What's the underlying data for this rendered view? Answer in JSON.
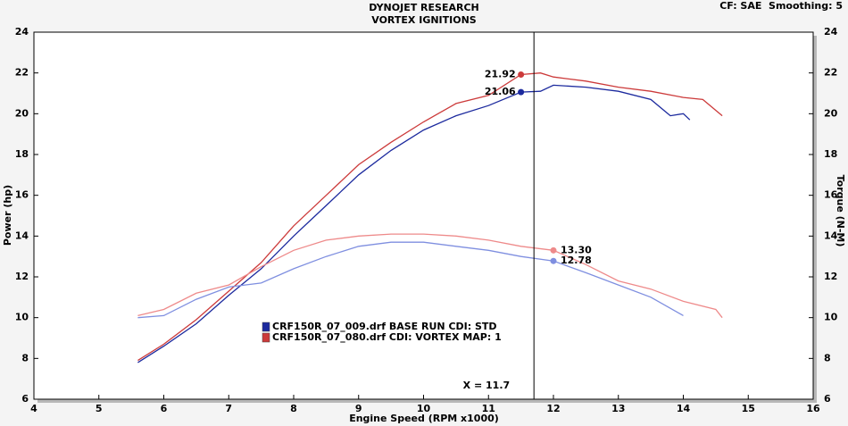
{
  "chart_data": {
    "type": "line",
    "title": "DYNOJET RESEARCH",
    "subtitle": "VORTEX IGNITIONS",
    "settings_label": "CF: SAE  Smoothing: 5",
    "x_label": "Engine Speed (RPM x1000)",
    "y_label": "Power (hp)",
    "y2_label": "Torque (N-M)",
    "xlim": [
      4,
      16
    ],
    "xticks": [
      4,
      5,
      6,
      7,
      8,
      9,
      10,
      11,
      12,
      13,
      14,
      15,
      16
    ],
    "ylim": [
      6,
      24
    ],
    "yticks": [
      6,
      8,
      10,
      12,
      14,
      16,
      18,
      20,
      22,
      24
    ],
    "y2lim": [
      6,
      24
    ],
    "y2ticks": [
      6,
      8,
      10,
      12,
      14,
      16,
      18,
      20,
      22,
      24
    ],
    "grid": false,
    "series": [
      {
        "name": "CRF150R_07_009.drf BASE RUN CDI: STD",
        "color": "#1c2a9e",
        "x": [
          5.6,
          6,
          6.5,
          7,
          7.5,
          8,
          8.5,
          9,
          9.5,
          10,
          10.5,
          11,
          11.5,
          11.8,
          12,
          12.5,
          13,
          13.5,
          13.8,
          14,
          14.1
        ],
        "values": [
          7.8,
          8.6,
          9.7,
          11.1,
          12.4,
          14.0,
          15.5,
          17.0,
          18.2,
          19.2,
          19.9,
          20.4,
          21.06,
          21.1,
          21.4,
          21.3,
          21.1,
          20.7,
          19.9,
          20.0,
          19.7
        ]
      },
      {
        "name": "CRF150R_07_080.drf CDI: VORTEX MAP: 1",
        "color": "#cc3a3a",
        "x": [
          5.6,
          6,
          6.5,
          7,
          7.5,
          8,
          8.5,
          9,
          9.5,
          10,
          10.5,
          11,
          11.5,
          11.8,
          12,
          12.5,
          13,
          13.5,
          14,
          14.3,
          14.6
        ],
        "values": [
          7.9,
          8.7,
          9.9,
          11.3,
          12.7,
          14.5,
          16.0,
          17.5,
          18.6,
          19.6,
          20.5,
          20.9,
          21.92,
          22.0,
          21.8,
          21.6,
          21.3,
          21.1,
          20.8,
          20.7,
          19.9
        ]
      },
      {
        "color": "#7f8fe0",
        "axis": "y2",
        "x": [
          5.6,
          6,
          6.5,
          7,
          7.5,
          8,
          8.5,
          9,
          9.5,
          10,
          10.5,
          11,
          11.5,
          12,
          12.5,
          13,
          13.5,
          14
        ],
        "values": [
          10.0,
          10.1,
          10.9,
          11.5,
          11.7,
          12.4,
          13.0,
          13.5,
          13.7,
          13.7,
          13.5,
          13.3,
          13.0,
          12.78,
          12.2,
          11.6,
          11.0,
          10.1
        ]
      },
      {
        "color": "#ee8a8a",
        "axis": "y2",
        "x": [
          5.6,
          6,
          6.5,
          7,
          7.5,
          8,
          8.5,
          9,
          9.5,
          10,
          10.5,
          11,
          11.5,
          12,
          12.5,
          13,
          13.5,
          14,
          14.5,
          14.6
        ],
        "values": [
          10.1,
          10.4,
          11.2,
          11.6,
          12.5,
          13.3,
          13.8,
          14.0,
          14.1,
          14.1,
          14.0,
          13.8,
          13.5,
          13.3,
          12.6,
          11.8,
          11.4,
          10.8,
          10.4,
          10.0
        ]
      }
    ],
    "readings": [
      {
        "series": 1,
        "x": 11.5,
        "value": 21.92
      },
      {
        "series": 0,
        "x": 11.5,
        "value": 21.06
      },
      {
        "series": 3,
        "x": 12,
        "value": {
          "value": 13.3,
          "label": "13.30"
        }
      },
      {
        "series": 2,
        "x": 12,
        "value": 12.78
      }
    ],
    "cursor": {
      "value": 11.7,
      "label": "X = 11.7"
    }
  }
}
